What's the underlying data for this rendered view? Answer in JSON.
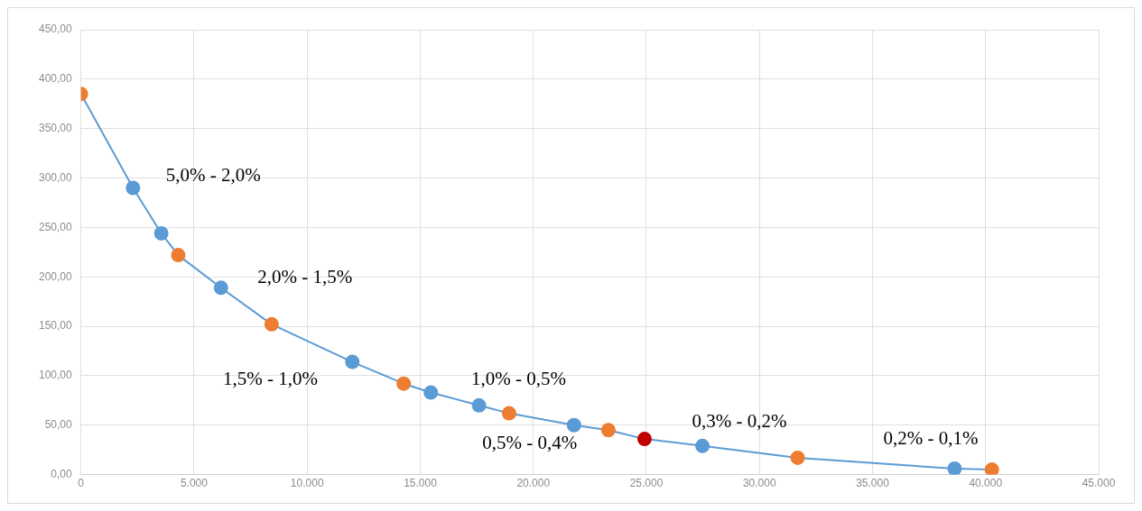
{
  "chart_data": {
    "type": "line",
    "x": [
      0,
      2300,
      3550,
      4300,
      6190,
      8430,
      12000,
      14270,
      15470,
      17600,
      18930,
      21800,
      23320,
      24920,
      27480,
      31690,
      38630,
      40280
    ],
    "series": [
      {
        "color": "#5b9bd5",
        "colors": [
          "#ed7d31",
          "#5b9bd5",
          "#5b9bd5",
          "#ed7d31",
          "#5b9bd5",
          "#ed7d31",
          "#5b9bd5",
          "#ed7d31",
          "#5b9bd5",
          "#5b9bd5",
          "#ed7d31",
          "#5b9bd5",
          "#ed7d31",
          "#c00000",
          "#5b9bd5",
          "#ed7d31",
          "#5b9bd5",
          "#ed7d31"
        ],
        "values": [
          385,
          290,
          244,
          222,
          189,
          152,
          114,
          92,
          83,
          70,
          62,
          50,
          45,
          36,
          29,
          17,
          6,
          5
        ]
      }
    ],
    "xlim": [
      0,
      45000
    ],
    "xticks": [
      {
        "value": 0,
        "label": "0"
      },
      {
        "value": 5000,
        "label": "5.000"
      },
      {
        "value": 10000,
        "label": "10.000"
      },
      {
        "value": 15000,
        "label": "15.000"
      },
      {
        "value": 20000,
        "label": "20.000"
      },
      {
        "value": 25000,
        "label": "25.000"
      },
      {
        "value": 30000,
        "label": "30.000"
      },
      {
        "value": 35000,
        "label": "35.000"
      },
      {
        "value": 40000,
        "label": "40.000"
      },
      {
        "value": 45000,
        "label": "45.000"
      }
    ],
    "ylim": [
      0,
      450
    ],
    "yticks": [
      {
        "value": 0,
        "label": "0,00"
      },
      {
        "value": 50,
        "label": "50,00"
      },
      {
        "value": 100,
        "label": "100,00"
      },
      {
        "value": 150,
        "label": "150,00"
      },
      {
        "value": 200,
        "label": "200,00"
      },
      {
        "value": 250,
        "label": "250,00"
      },
      {
        "value": 300,
        "label": "300,00"
      },
      {
        "value": 350,
        "label": "350,00"
      },
      {
        "value": 400,
        "label": "400,00"
      },
      {
        "value": 450,
        "label": "450,00"
      }
    ],
    "annotations": [
      "5,0% - 2,0%",
      "2,0% - 1,5%",
      "1,5% - 1,0%",
      "1,0% - 0,5%",
      "0,5% - 0,4%",
      "0,3% - 0,2%",
      "0,2% - 0,1%"
    ],
    "grid": true,
    "legend": false,
    "marker": "circle",
    "line_style": "solid"
  }
}
